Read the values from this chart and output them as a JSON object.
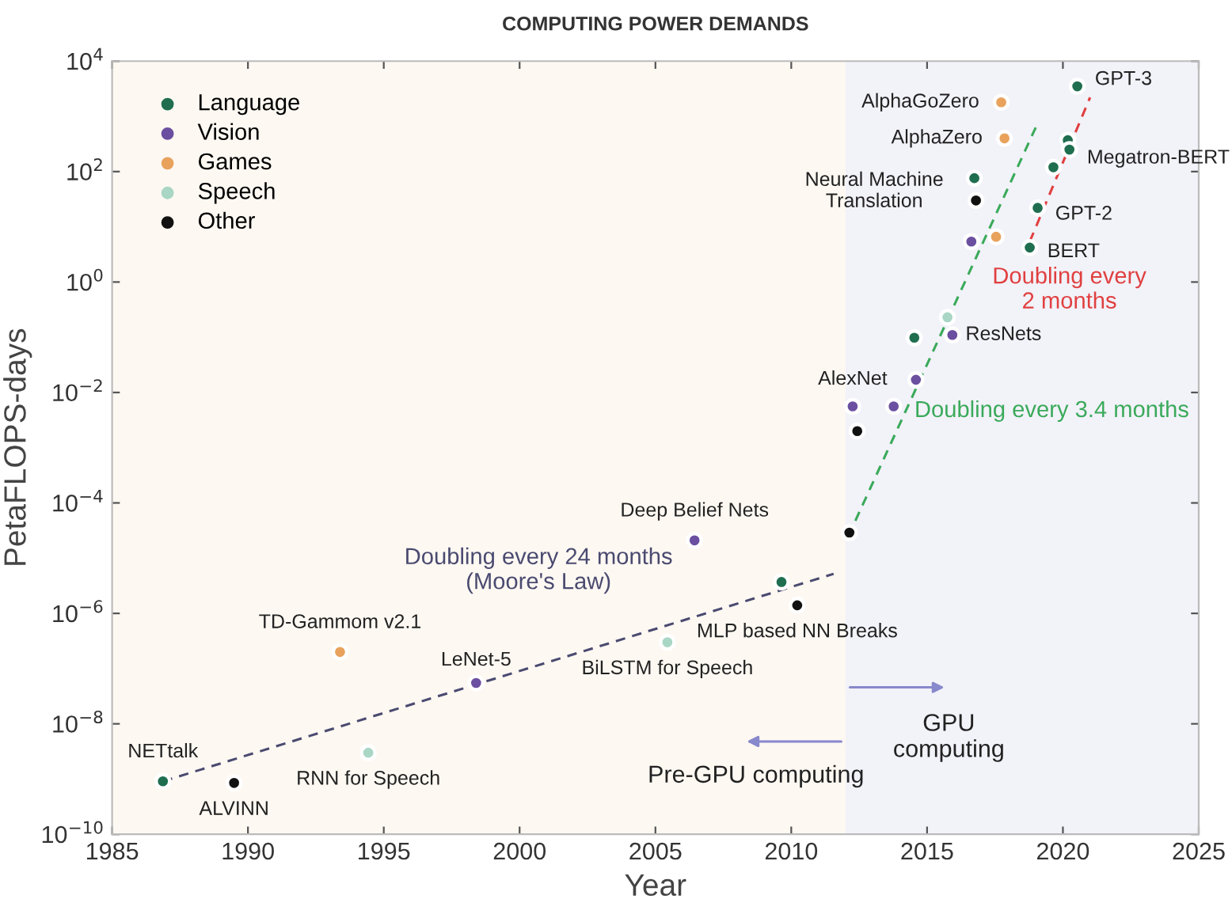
{
  "chart_data": {
    "type": "scatter",
    "title": "COMPUTING POWER DEMANDS",
    "xlabel": "Year",
    "ylabel": "PetaFLOPS-days",
    "xlim": [
      1985,
      2025
    ],
    "xticks": [
      1985,
      1990,
      1995,
      2000,
      2005,
      2010,
      2015,
      2020,
      2025
    ],
    "ylim": [
      1e-10,
      10000
    ],
    "log": "y",
    "yticks": [
      {
        "value": 1e-10,
        "label": "10$^{−10}$"
      },
      {
        "value": 1e-08,
        "label": "10$^{−8}$"
      },
      {
        "value": 1e-06,
        "label": "10$^{−6}$"
      },
      {
        "value": 0.0001,
        "label": "10$^{−4}$"
      },
      {
        "value": 0.01,
        "label": "10$^{−2}$"
      },
      {
        "value": 1,
        "label": "10$^{0}$"
      },
      {
        "value": 100,
        "label": "10$^{2}$"
      },
      {
        "value": 10000,
        "label": "10$^{4}$"
      }
    ],
    "grid": false,
    "legend": "top left",
    "marker": "circle",
    "series": [
      {
        "name": "Language",
        "color": "#1f6e50",
        "x": [
          1986.87,
          2009.64,
          2014.53,
          2016.74,
          2018.78,
          2019.07,
          2019.65,
          2020.18,
          2020.24,
          2020.53
        ],
        "values": [
          9.1e-10,
          3.7e-06,
          0.098,
          76,
          4.2,
          22,
          120,
          370,
          250,
          3500
        ]
      },
      {
        "name": "Vision",
        "color": "#6b4fa0",
        "x": [
          1998.4,
          2006.44,
          2012.26,
          2013.77,
          2014.59,
          2015.93,
          2016.63
        ],
        "values": [
          5.5e-08,
          2.1e-05,
          0.0056,
          0.0056,
          0.017,
          0.11,
          5.4
        ]
      },
      {
        "name": "Games",
        "color": "#e8a25c",
        "x": [
          1993.39,
          2017.54,
          2017.85,
          2017.73
        ],
        "values": [
          2e-07,
          6.6,
          400,
          1800
        ]
      },
      {
        "name": "Speech",
        "color": "#a9d6c5",
        "x": [
          1994.43,
          2005.44,
          2015.75
        ],
        "values": [
          3e-09,
          3e-07,
          0.23
        ]
      },
      {
        "name": "Other",
        "color": "#111111",
        "x": [
          1989.49,
          2010.22,
          2012.14,
          2012.43,
          2016.8
        ],
        "values": [
          8.5e-10,
          1.4e-06,
          2.9e-05,
          0.002,
          30
        ]
      },
      {
        "type": "line",
        "marker": "none",
        "name": "Doubling every 24 months\n(Moore's Law)",
        "line_style": "dashed",
        "color": "#4a4a70",
        "x": [
          1986.87,
          2011.56
        ],
        "values": [
          9.1e-10,
          5.2e-06
        ]
      },
      {
        "type": "line",
        "marker": "none",
        "name": "Doubling every 3.4 months",
        "line_style": "dashed",
        "color": "#3aaa5a",
        "x": [
          2012.1,
          2019.0
        ],
        "values": [
          2.5e-05,
          630
        ]
      },
      {
        "type": "line",
        "marker": "none",
        "name": "Doubling every\n2 months",
        "line_style": "dashed",
        "color": "#e04040",
        "x": [
          2018.78,
          2021.0
        ],
        "values": [
          5.4,
          2200
        ]
      }
    ],
    "bands": [
      {
        "axis": "x",
        "from": 1985,
        "to": 2012,
        "label": "Pre-GPU computing",
        "color": "#fdf8f2"
      },
      {
        "axis": "x",
        "from": 2012,
        "to": 2025,
        "label": "GPU\ncomputing",
        "color": "#f2f2f9"
      }
    ],
    "annotations": [
      {
        "text": "NETtalk",
        "x": 1986.87,
        "y": 9.1e-10
      },
      {
        "text": "ALVINN",
        "x": 1989.49,
        "y": 8.5e-10
      },
      {
        "text": "RNN for Speech",
        "x": 1994.43,
        "y": 3e-09
      },
      {
        "text": "TD-Gammom v2.1",
        "x": 1993.39,
        "y": 2e-07
      },
      {
        "text": "LeNet-5",
        "x": 1998.4,
        "y": 5.5e-08
      },
      {
        "text": "Deep Belief Nets",
        "x": 2006.44,
        "y": 2.1e-05
      },
      {
        "text": "BiLSTM for Speech",
        "x": 2005.44,
        "y": 3e-07
      },
      {
        "text": "MLP based NN Breaks",
        "x": 2010.22,
        "y": 1.4e-06
      },
      {
        "text": "AlexNet",
        "x": 2012.26,
        "y": 0.0056
      },
      {
        "text": "ResNets",
        "x": 2015.93,
        "y": 0.11
      },
      {
        "text": "Neural Machine\nTranslation",
        "x": 2016.74,
        "y": 76
      },
      {
        "text": "AlphaZero",
        "x": 2017.85,
        "y": 400
      },
      {
        "text": "AlphaGoZero",
        "x": 2017.73,
        "y": 1800
      },
      {
        "text": "BERT",
        "x": 2018.78,
        "y": 4.2
      },
      {
        "text": "GPT-2",
        "x": 2019.07,
        "y": 22
      },
      {
        "text": "Megatron-BERT",
        "x": 2020.24,
        "y": 250
      },
      {
        "text": "GPT-3",
        "x": 2020.53,
        "y": 3500
      }
    ]
  }
}
